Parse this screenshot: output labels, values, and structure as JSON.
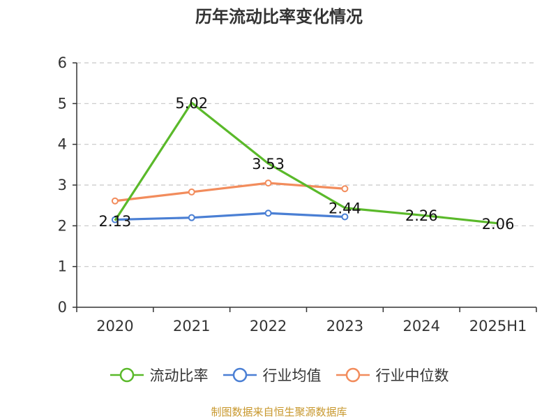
{
  "chart_data": {
    "type": "line",
    "title": "历年流动比率变化情况",
    "xlabel": "",
    "ylabel": "",
    "categories": [
      "2020",
      "2021",
      "2022",
      "2023",
      "2024",
      "2025H1"
    ],
    "ylim": [
      0,
      6
    ],
    "yticks": [
      "0",
      "1",
      "2",
      "3",
      "4",
      "5",
      "6"
    ],
    "grid": true,
    "legend_position": "bottom",
    "series": [
      {
        "name": "流动比率",
        "color": "#5ab92a",
        "values": [
          2.13,
          5.02,
          3.53,
          2.44,
          2.26,
          2.06
        ],
        "labels": [
          "2.13",
          "5.02",
          "3.53",
          "2.44",
          "2.26",
          "2.06"
        ],
        "show_markers": false,
        "show_labels": true
      },
      {
        "name": "行业均值",
        "color": "#4a7fd4",
        "values": [
          2.15,
          2.2,
          2.31,
          2.22,
          null,
          null
        ],
        "show_markers": true,
        "show_labels": false
      },
      {
        "name": "行业中位数",
        "color": "#f28c5c",
        "values": [
          2.61,
          2.83,
          3.05,
          2.91,
          null,
          null
        ],
        "show_markers": true,
        "show_labels": false
      }
    ]
  },
  "source_note": "制图数据来自恒生聚源数据库"
}
